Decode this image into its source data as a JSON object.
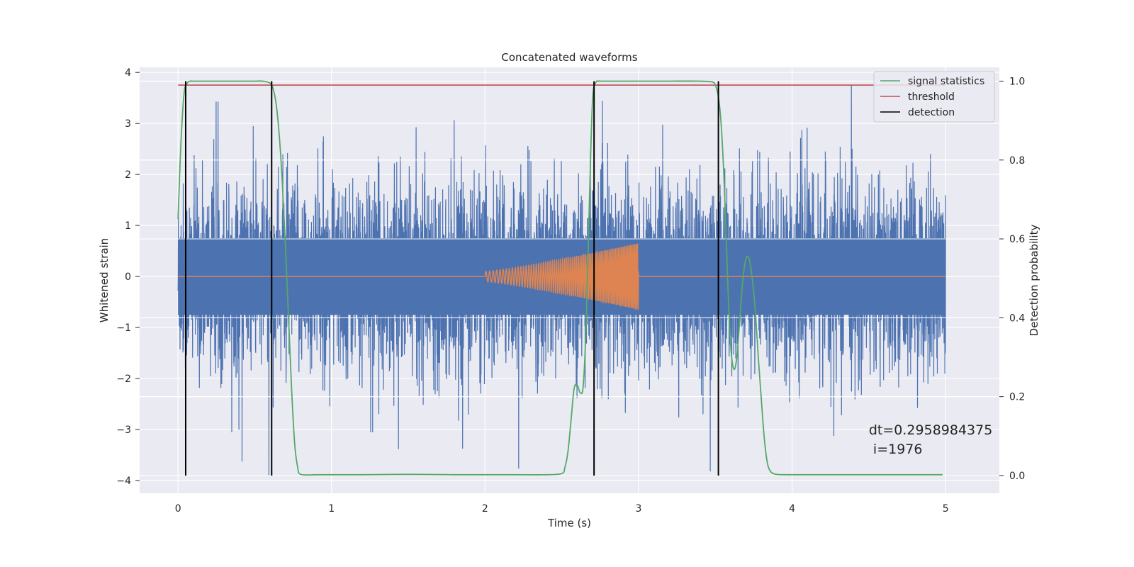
{
  "chart_data": {
    "type": "line",
    "title": "Concatenated waveforms",
    "xlabel": "Time (s)",
    "ylabel": "Whitened strain",
    "y2label": "Detection probability",
    "xlim": [
      -0.25,
      5.35
    ],
    "ylim": [
      -4.25,
      4.1
    ],
    "y2lim": [
      -0.045,
      1.035
    ],
    "xticks": [
      0,
      1,
      2,
      3,
      4,
      5
    ],
    "yticks": [
      -4,
      -3,
      -2,
      -1,
      0,
      1,
      2,
      3,
      4
    ],
    "y2ticks": [
      0.0,
      0.2,
      0.4,
      0.6,
      0.8,
      1.0
    ],
    "y2ticklabels": [
      "0.0",
      "0.2",
      "0.4",
      "0.6",
      "0.8",
      "1.0"
    ],
    "grid": true,
    "legend_position": "top-right",
    "legend": [
      {
        "label": "signal statistics",
        "color": "#55a868"
      },
      {
        "label": "threshold",
        "color": "#c44e52"
      },
      {
        "label": "detection",
        "color": "#000000"
      }
    ],
    "series": [
      {
        "kind": "noise",
        "axis": "left",
        "color": "#4c72b0",
        "x_range": [
          0,
          5
        ],
        "typical_amplitude": 1.5,
        "peak_range": [
          -3.9,
          3.75
        ],
        "band": [
          -0.75,
          0.75
        ]
      },
      {
        "kind": "chirp",
        "axis": "left",
        "color": "#dd8452",
        "x_range": [
          0,
          5
        ],
        "active_range": [
          2.0,
          3.0
        ],
        "amplitude_start": 0.1,
        "amplitude_end": 0.65,
        "freq_start_hz": 40,
        "freq_end_hz": 110
      },
      {
        "name": "signal statistics",
        "axis": "right",
        "color": "#55a868",
        "x": [
          0.0,
          0.02,
          0.04,
          0.06,
          0.08,
          0.1,
          0.2,
          0.3,
          0.4,
          0.5,
          0.55,
          0.6,
          0.62,
          0.64,
          0.66,
          0.68,
          0.7,
          0.72,
          0.74,
          0.76,
          0.78,
          0.8,
          0.9,
          1.0,
          1.2,
          1.5,
          1.8,
          2.0,
          2.2,
          2.4,
          2.5,
          2.52,
          2.54,
          2.56,
          2.58,
          2.6,
          2.62,
          2.64,
          2.66,
          2.68,
          2.7,
          2.72,
          2.74,
          2.76,
          2.8,
          3.0,
          3.2,
          3.4,
          3.48,
          3.5,
          3.52,
          3.54,
          3.56,
          3.58,
          3.6,
          3.62,
          3.64,
          3.66,
          3.68,
          3.7,
          3.72,
          3.74,
          3.76,
          3.78,
          3.8,
          3.82,
          3.84,
          3.86,
          3.88,
          3.9,
          4.0,
          4.5,
          4.98
        ],
        "values": [
          0.65,
          0.85,
          0.97,
          0.995,
          1.0,
          1.0,
          1.0,
          1.0,
          1.0,
          1.0,
          1.0,
          0.995,
          0.98,
          0.94,
          0.86,
          0.74,
          0.58,
          0.4,
          0.22,
          0.08,
          0.02,
          0.003,
          0.002,
          0.002,
          0.002,
          0.003,
          0.002,
          0.002,
          0.002,
          0.002,
          0.005,
          0.02,
          0.06,
          0.14,
          0.22,
          0.23,
          0.21,
          0.23,
          0.4,
          0.7,
          0.95,
          0.995,
          1.0,
          1.0,
          1.0,
          1.0,
          1.0,
          1.0,
          0.998,
          0.99,
          0.96,
          0.88,
          0.72,
          0.5,
          0.33,
          0.27,
          0.3,
          0.4,
          0.5,
          0.55,
          0.55,
          0.5,
          0.42,
          0.3,
          0.19,
          0.09,
          0.03,
          0.01,
          0.005,
          0.003,
          0.002,
          0.002,
          0.002
        ]
      },
      {
        "name": "threshold",
        "axis": "right",
        "color": "#c44e52",
        "x": [
          0,
          5
        ],
        "values": [
          0.99,
          0.99
        ]
      }
    ],
    "detections": {
      "color": "#000000",
      "x": [
        0.05,
        0.61,
        2.71,
        3.52
      ],
      "range": [
        0.0,
        1.0
      ]
    },
    "annotation": {
      "lines": [
        "dt=0.2958984375",
        " i=1976"
      ],
      "x": 4.5,
      "y": -3.0
    }
  }
}
